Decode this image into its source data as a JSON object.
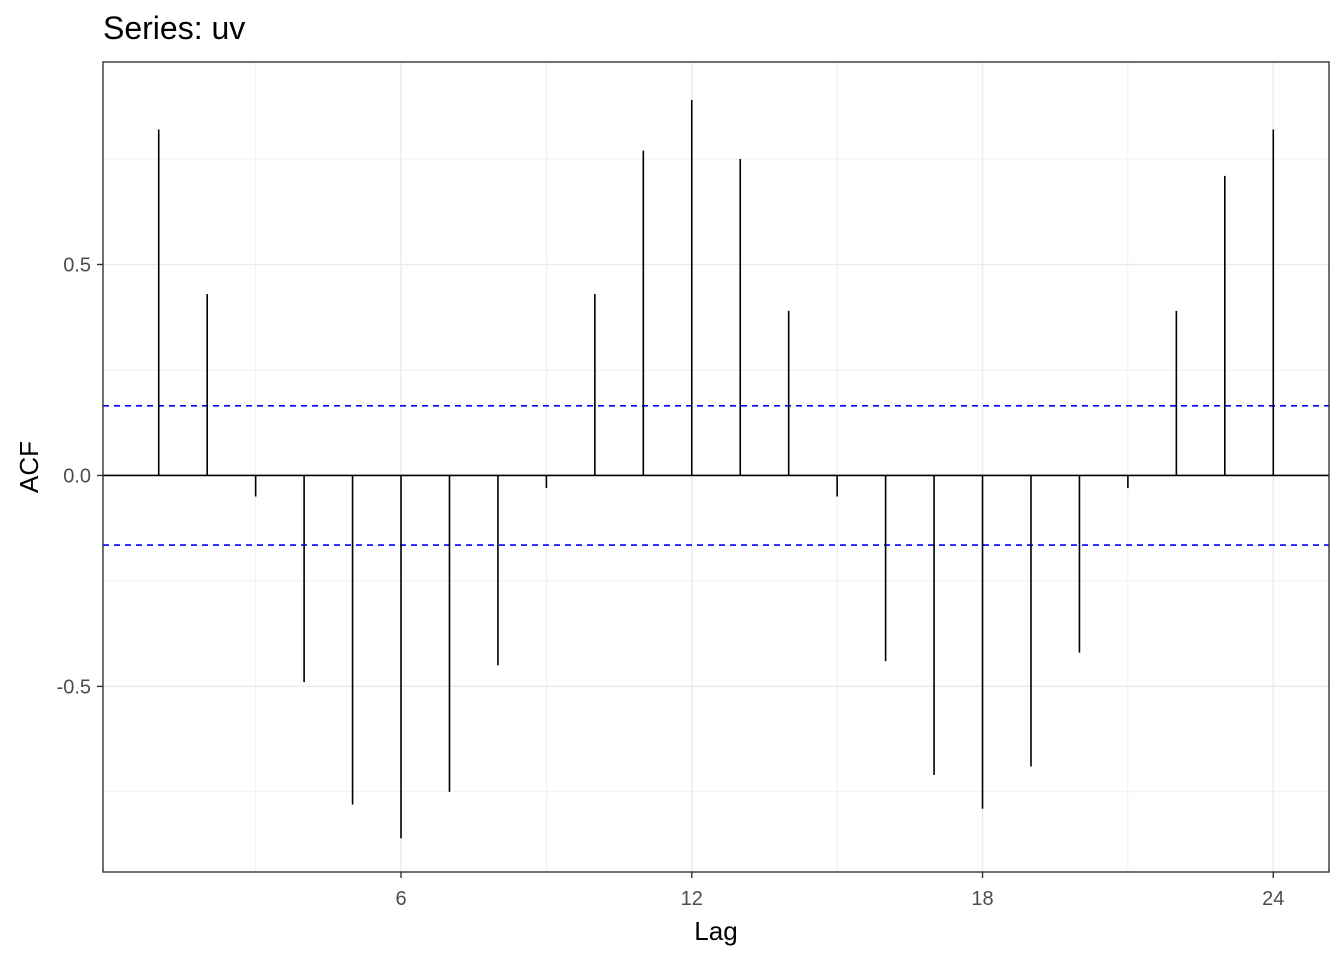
{
  "chart_data": {
    "type": "bar",
    "title": "Series: uv",
    "xlabel": "Lag",
    "ylabel": "ACF",
    "x_ticks": [
      6,
      12,
      18,
      24
    ],
    "y_ticks": [
      -0.5,
      0.0,
      0.5
    ],
    "y_tick_labels": [
      "-0.5",
      "0.0",
      "0.5"
    ],
    "xlim": [
      -0.15,
      25.15
    ],
    "ylim": [
      -0.94,
      0.98
    ],
    "lags": [
      1,
      2,
      3,
      4,
      5,
      6,
      7,
      8,
      9,
      10,
      11,
      12,
      13,
      14,
      15,
      16,
      17,
      18,
      19,
      20,
      21,
      22,
      23,
      24
    ],
    "values": [
      0.82,
      0.43,
      -0.05,
      -0.49,
      -0.78,
      -0.86,
      -0.75,
      -0.45,
      -0.03,
      0.43,
      0.77,
      0.89,
      0.75,
      0.39,
      -0.05,
      -0.44,
      -0.71,
      -0.79,
      -0.69,
      -0.42,
      -0.03,
      0.39,
      0.71,
      0.82
    ],
    "confidence_bound": 0.165,
    "grid": true,
    "colors": {
      "bars": "#000000",
      "confidence": "#0000ff",
      "grid": "#ebebeb",
      "panel_border": "#333333"
    }
  }
}
